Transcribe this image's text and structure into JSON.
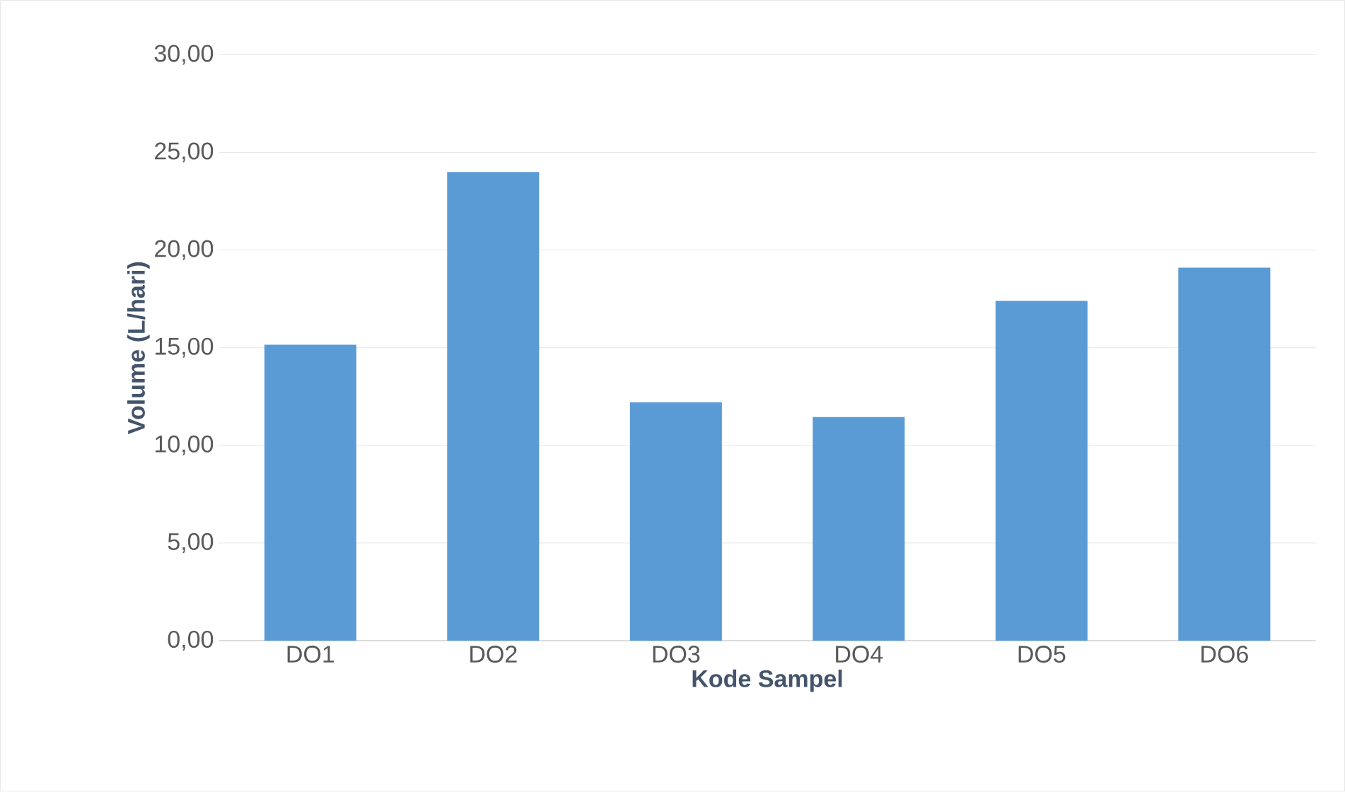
{
  "chart_data": {
    "type": "bar",
    "xlabel": "Kode Sampel",
    "ylabel": "Volume (L/hari)",
    "categories": [
      "DO1",
      "DO2",
      "DO3",
      "DO4",
      "DO5",
      "DO6"
    ],
    "values": [
      15.15,
      24.0,
      12.2,
      11.45,
      17.4,
      19.1
    ],
    "color": "#5b9bd5",
    "ylim": [
      0,
      30
    ],
    "yticks": [
      {
        "value": 0,
        "label": "0,00"
      },
      {
        "value": 5,
        "label": "5,00"
      },
      {
        "value": 10,
        "label": "10,00"
      },
      {
        "value": 15,
        "label": "15,00"
      },
      {
        "value": 20,
        "label": "20,00"
      },
      {
        "value": 25,
        "label": "25,00"
      },
      {
        "value": 30,
        "label": "30,00"
      }
    ],
    "grid": "y"
  }
}
